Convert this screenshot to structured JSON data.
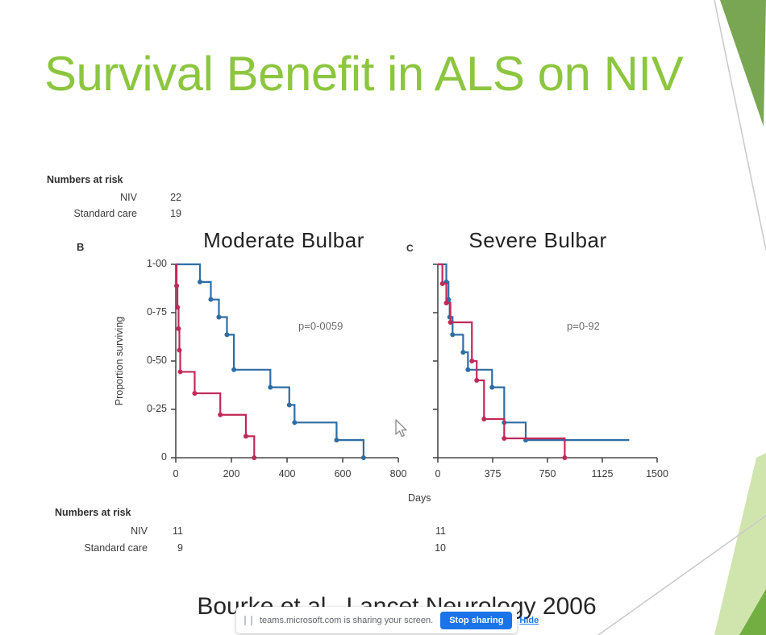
{
  "slide": {
    "title": "Survival Benefit in ALS on NIV",
    "title_color": "#8cc63f",
    "citation": "Bourke et al., Lancet Neurology 2006"
  },
  "risk_top": {
    "header": "Numbers at risk",
    "rows": [
      {
        "label": "NIV",
        "value": "22"
      },
      {
        "label": "Standard care",
        "value": "19"
      }
    ]
  },
  "risk_bottom": {
    "header": "Numbers at risk",
    "rows": [
      {
        "label": "NIV",
        "moderate": "11",
        "severe": "11"
      },
      {
        "label": "Standard care",
        "moderate": "9",
        "severe": "10"
      }
    ]
  },
  "chart_data": [
    {
      "type": "line",
      "panel_label": "B",
      "title": "Moderate Bulbar",
      "p_value": "p=0-0059",
      "ylabel": "Proportion surviving",
      "xlabel": "Days",
      "xlim": [
        0,
        800
      ],
      "ylim": [
        0,
        1
      ],
      "x_ticks": [
        "0",
        "200",
        "400",
        "600",
        "800"
      ],
      "y_ticks": [
        "1-00",
        "0-75",
        "0-50",
        "0-25",
        "0"
      ],
      "grid": false,
      "legend_shown": false,
      "markers": true,
      "series": [
        {
          "name": "NIV",
          "color": "#2e6da4",
          "steps": [
            [
              0,
              1
            ],
            [
              87,
              0.909
            ],
            [
              126,
              0.818
            ],
            [
              155,
              0.727
            ],
            [
              184,
              0.636
            ],
            [
              209,
              0.455
            ],
            [
              340,
              0.364
            ],
            [
              408,
              0.273
            ],
            [
              427,
              0.182
            ],
            [
              578,
              0.091
            ],
            [
              675,
              0
            ]
          ]
        },
        {
          "name": "Standard care",
          "color": "#c22958",
          "steps": [
            [
              0,
              1
            ],
            [
              3,
              0.889
            ],
            [
              6,
              0.778
            ],
            [
              10,
              0.667
            ],
            [
              13,
              0.556
            ],
            [
              16,
              0.444
            ],
            [
              68,
              0.333
            ],
            [
              160,
              0.222
            ],
            [
              252,
              0.111
            ],
            [
              282,
              0
            ]
          ]
        }
      ]
    },
    {
      "type": "line",
      "panel_label": "C",
      "title": "Severe Bulbar",
      "p_value": "p=0-92",
      "ylabel": "",
      "xlabel": "Days",
      "xlim": [
        0,
        1500
      ],
      "ylim": [
        0,
        1
      ],
      "x_ticks": [
        "0",
        "375",
        "750",
        "1125",
        "1500"
      ],
      "y_ticks": [],
      "grid": false,
      "legend_shown": false,
      "markers": true,
      "series": [
        {
          "name": "NIV",
          "color": "#2e6da4",
          "steps": [
            [
              0,
              1
            ],
            [
              58,
              0.909
            ],
            [
              73,
              0.818
            ],
            [
              81,
              0.727
            ],
            [
              101,
              0.636
            ],
            [
              173,
              0.545
            ],
            [
              206,
              0.455
            ],
            [
              371,
              0.364
            ],
            [
              454,
              0.182
            ],
            [
              601,
              0.091
            ],
            [
              1309,
              0.091
            ]
          ]
        },
        {
          "name": "Standard care",
          "color": "#c22958",
          "steps": [
            [
              0,
              1
            ],
            [
              31,
              0.9
            ],
            [
              58,
              0.8
            ],
            [
              86,
              0.7
            ],
            [
              233,
              0.5
            ],
            [
              266,
              0.4
            ],
            [
              316,
              0.2
            ],
            [
              454,
              0.1
            ],
            [
              868,
              0
            ]
          ]
        }
      ]
    }
  ],
  "share_bar": {
    "message": "teams.microsoft.com is sharing your screen.",
    "stop_button": "Stop sharing",
    "hide_link": "Hide",
    "button_color": "#1a73e8"
  },
  "decor": {
    "triangle_green": "#78a653",
    "triangle_light_green": "#d0e5ae",
    "triangle_dark_green": "#72ae41",
    "line_gray": "#c9c9c9"
  }
}
